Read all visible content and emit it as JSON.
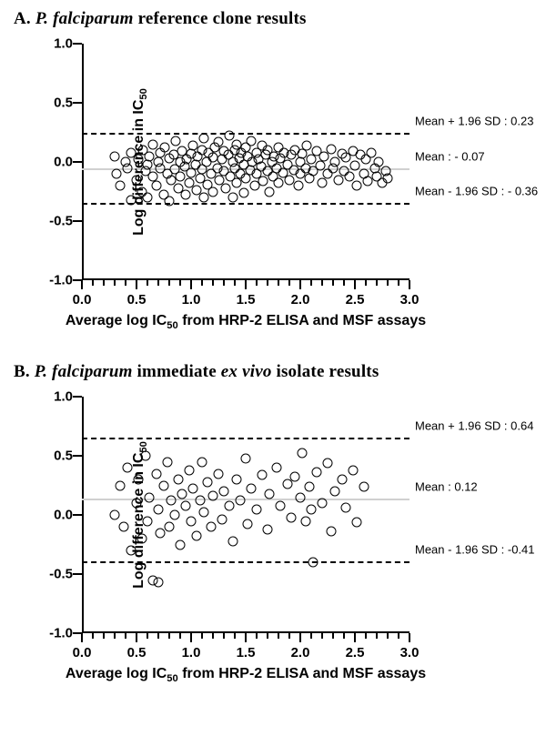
{
  "figure": {
    "panels": [
      {
        "id": "A",
        "title_prefix": "A. ",
        "title_italic": "P. falciparum",
        "title_suffix": " reference clone results",
        "xlabel_prefix": "Average log IC",
        "xlabel_sub": "50",
        "xlabel_suffix": " from HRP-2 ELISA and MSF assays",
        "ylabel_prefix": "Log difference in IC",
        "ylabel_sub": "50",
        "xlim": [
          0,
          3.0
        ],
        "ylim": [
          -1.0,
          1.0
        ],
        "xticks_major": [
          0.0,
          0.5,
          1.0,
          1.5,
          2.0,
          2.5,
          3.0
        ],
        "xticks_minor_step": 0.1,
        "yticks": [
          -1.0,
          -0.5,
          0.0,
          0.5,
          1.0
        ],
        "mean": -0.07,
        "upper": 0.23,
        "lower": -0.36,
        "annot_upper": "Mean + 1.96 SD : 0.23",
        "annot_mean": "Mean : - 0.07",
        "annot_lower": "Mean - 1.96 SD : - 0.36",
        "marker_color": "#000000",
        "background": "#ffffff",
        "points": [
          [
            0.3,
            0.05
          ],
          [
            0.32,
            -0.1
          ],
          [
            0.35,
            -0.2
          ],
          [
            0.4,
            0.0
          ],
          [
            0.42,
            -0.05
          ],
          [
            0.45,
            0.08
          ],
          [
            0.45,
            -0.32
          ],
          [
            0.5,
            -0.15
          ],
          [
            0.52,
            0.02
          ],
          [
            0.55,
            -0.25
          ],
          [
            0.56,
            0.1
          ],
          [
            0.58,
            -0.08
          ],
          [
            0.6,
            -0.02
          ],
          [
            0.6,
            -0.3
          ],
          [
            0.62,
            0.05
          ],
          [
            0.65,
            -0.12
          ],
          [
            0.65,
            0.15
          ],
          [
            0.68,
            -0.2
          ],
          [
            0.7,
            0.0
          ],
          [
            0.72,
            -0.05
          ],
          [
            0.72,
            0.08
          ],
          [
            0.75,
            -0.28
          ],
          [
            0.76,
            0.12
          ],
          [
            0.78,
            -0.1
          ],
          [
            0.8,
            0.03
          ],
          [
            0.8,
            -0.33
          ],
          [
            0.82,
            -0.15
          ],
          [
            0.84,
            0.06
          ],
          [
            0.85,
            -0.06
          ],
          [
            0.86,
            0.18
          ],
          [
            0.88,
            -0.22
          ],
          [
            0.9,
            0.0
          ],
          [
            0.9,
            -0.12
          ],
          [
            0.92,
            0.09
          ],
          [
            0.94,
            -0.04
          ],
          [
            0.95,
            -0.28
          ],
          [
            0.96,
            0.02
          ],
          [
            0.98,
            -0.18
          ],
          [
            1.0,
            0.07
          ],
          [
            1.0,
            -0.09
          ],
          [
            1.02,
            0.14
          ],
          [
            1.04,
            -0.02
          ],
          [
            1.05,
            -0.24
          ],
          [
            1.06,
            0.05
          ],
          [
            1.08,
            -0.14
          ],
          [
            1.1,
            0.1
          ],
          [
            1.1,
            -0.06
          ],
          [
            1.12,
            0.2
          ],
          [
            1.12,
            -0.3
          ],
          [
            1.14,
            0.0
          ],
          [
            1.15,
            -0.19
          ],
          [
            1.16,
            0.08
          ],
          [
            1.18,
            -0.1
          ],
          [
            1.2,
            0.04
          ],
          [
            1.2,
            -0.25
          ],
          [
            1.22,
            0.12
          ],
          [
            1.24,
            -0.05
          ],
          [
            1.25,
            0.17
          ],
          [
            1.26,
            -0.15
          ],
          [
            1.28,
            0.02
          ],
          [
            1.3,
            -0.08
          ],
          [
            1.3,
            0.09
          ],
          [
            1.32,
            -0.22
          ],
          [
            1.34,
            0.06
          ],
          [
            1.35,
            0.22
          ],
          [
            1.36,
            -0.12
          ],
          [
            1.38,
            0.0
          ],
          [
            1.38,
            -0.3
          ],
          [
            1.4,
            0.1
          ],
          [
            1.4,
            -0.05
          ],
          [
            1.42,
            0.15
          ],
          [
            1.42,
            -0.18
          ],
          [
            1.44,
            0.03
          ],
          [
            1.45,
            -0.1
          ],
          [
            1.46,
            0.08
          ],
          [
            1.48,
            -0.02
          ],
          [
            1.48,
            -0.26
          ],
          [
            1.5,
            0.12
          ],
          [
            1.5,
            -0.14
          ],
          [
            1.52,
            0.05
          ],
          [
            1.54,
            -0.07
          ],
          [
            1.55,
            0.18
          ],
          [
            1.56,
            0.0
          ],
          [
            1.58,
            -0.2
          ],
          [
            1.6,
            0.08
          ],
          [
            1.6,
            -0.1
          ],
          [
            1.62,
            0.02
          ],
          [
            1.64,
            -0.04
          ],
          [
            1.65,
            0.14
          ],
          [
            1.66,
            -0.16
          ],
          [
            1.68,
            0.06
          ],
          [
            1.7,
            -0.08
          ],
          [
            1.7,
            0.1
          ],
          [
            1.72,
            -0.25
          ],
          [
            1.74,
            0.0
          ],
          [
            1.75,
            -0.12
          ],
          [
            1.76,
            0.05
          ],
          [
            1.78,
            -0.05
          ],
          [
            1.8,
            0.12
          ],
          [
            1.8,
            -0.18
          ],
          [
            1.82,
            0.03
          ],
          [
            1.84,
            -0.09
          ],
          [
            1.85,
            0.08
          ],
          [
            1.88,
            -0.02
          ],
          [
            1.9,
            -0.15
          ],
          [
            1.92,
            0.06
          ],
          [
            1.94,
            -0.07
          ],
          [
            1.95,
            0.1
          ],
          [
            1.98,
            -0.2
          ],
          [
            2.0,
            0.0
          ],
          [
            2.0,
            -0.1
          ],
          [
            2.02,
            0.07
          ],
          [
            2.05,
            -0.05
          ],
          [
            2.06,
            0.14
          ],
          [
            2.08,
            -0.14
          ],
          [
            2.1,
            0.02
          ],
          [
            2.12,
            -0.08
          ],
          [
            2.15,
            0.09
          ],
          [
            2.18,
            -0.03
          ],
          [
            2.2,
            -0.18
          ],
          [
            2.22,
            0.05
          ],
          [
            2.25,
            -0.1
          ],
          [
            2.28,
            0.11
          ],
          [
            2.3,
            -0.05
          ],
          [
            2.32,
            0.0
          ],
          [
            2.35,
            -0.15
          ],
          [
            2.38,
            0.07
          ],
          [
            2.4,
            -0.08
          ],
          [
            2.42,
            0.04
          ],
          [
            2.45,
            -0.12
          ],
          [
            2.48,
            0.09
          ],
          [
            2.5,
            -0.03
          ],
          [
            2.52,
            -0.2
          ],
          [
            2.55,
            0.06
          ],
          [
            2.58,
            -0.1
          ],
          [
            2.6,
            0.02
          ],
          [
            2.62,
            -0.16
          ],
          [
            2.65,
            0.08
          ],
          [
            2.68,
            -0.05
          ],
          [
            2.7,
            -0.12
          ],
          [
            2.72,
            0.0
          ],
          [
            2.75,
            -0.18
          ],
          [
            2.78,
            -0.08
          ],
          [
            2.8,
            -0.14
          ]
        ]
      },
      {
        "id": "B",
        "title_prefix": "B. ",
        "title_italic": "P. falciparum",
        "title_mid": " immediate ",
        "title_italic2": "ex vivo",
        "title_suffix": " isolate results",
        "xlabel_prefix": "Average log IC",
        "xlabel_sub": "50",
        "xlabel_suffix": " from HRP-2 ELISA and MSF assays",
        "ylabel_prefix": "Log difference in IC",
        "ylabel_sub": "50",
        "xlim": [
          0,
          3.0
        ],
        "ylim": [
          -1.0,
          1.0
        ],
        "xticks_major": [
          0.0,
          0.5,
          1.0,
          1.5,
          2.0,
          2.5,
          3.0
        ],
        "xticks_minor_step": 0.1,
        "yticks": [
          -1.0,
          -0.5,
          0.0,
          0.5,
          1.0
        ],
        "mean": 0.12,
        "upper": 0.64,
        "lower": -0.41,
        "annot_upper": "Mean + 1.96 SD : 0.64",
        "annot_mean": "Mean  :  0.12",
        "annot_lower": "Mean - 1.96 SD : -0.41",
        "marker_color": "#000000",
        "background": "#ffffff",
        "points": [
          [
            0.3,
            0.0
          ],
          [
            0.35,
            0.25
          ],
          [
            0.38,
            -0.1
          ],
          [
            0.42,
            0.4
          ],
          [
            0.45,
            -0.3
          ],
          [
            0.5,
            0.1
          ],
          [
            0.52,
            0.3
          ],
          [
            0.55,
            -0.2
          ],
          [
            0.58,
            0.5
          ],
          [
            0.6,
            -0.05
          ],
          [
            0.62,
            0.15
          ],
          [
            0.65,
            -0.55
          ],
          [
            0.68,
            0.35
          ],
          [
            0.7,
            0.05
          ],
          [
            0.7,
            -0.57
          ],
          [
            0.72,
            -0.15
          ],
          [
            0.75,
            0.25
          ],
          [
            0.78,
            0.45
          ],
          [
            0.8,
            -0.1
          ],
          [
            0.82,
            0.12
          ],
          [
            0.85,
            0.0
          ],
          [
            0.88,
            0.3
          ],
          [
            0.9,
            -0.25
          ],
          [
            0.92,
            0.18
          ],
          [
            0.95,
            0.08
          ],
          [
            0.98,
            0.38
          ],
          [
            1.0,
            -0.05
          ],
          [
            1.02,
            0.22
          ],
          [
            1.05,
            -0.18
          ],
          [
            1.08,
            0.12
          ],
          [
            1.1,
            0.45
          ],
          [
            1.12,
            0.02
          ],
          [
            1.15,
            0.28
          ],
          [
            1.18,
            -0.1
          ],
          [
            1.2,
            0.16
          ],
          [
            1.25,
            0.35
          ],
          [
            1.28,
            -0.04
          ],
          [
            1.3,
            0.2
          ],
          [
            1.35,
            0.08
          ],
          [
            1.38,
            -0.22
          ],
          [
            1.42,
            0.3
          ],
          [
            1.45,
            0.12
          ],
          [
            1.5,
            0.48
          ],
          [
            1.52,
            -0.08
          ],
          [
            1.55,
            0.22
          ],
          [
            1.6,
            0.05
          ],
          [
            1.65,
            0.34
          ],
          [
            1.7,
            -0.12
          ],
          [
            1.72,
            0.18
          ],
          [
            1.78,
            0.4
          ],
          [
            1.82,
            0.08
          ],
          [
            1.88,
            0.26
          ],
          [
            1.92,
            -0.02
          ],
          [
            1.95,
            0.32
          ],
          [
            2.0,
            0.15
          ],
          [
            2.02,
            0.52
          ],
          [
            2.05,
            -0.05
          ],
          [
            2.08,
            0.24
          ],
          [
            2.1,
            0.05
          ],
          [
            2.12,
            -0.4
          ],
          [
            2.15,
            0.36
          ],
          [
            2.2,
            0.1
          ],
          [
            2.25,
            0.44
          ],
          [
            2.28,
            -0.14
          ],
          [
            2.32,
            0.2
          ],
          [
            2.38,
            0.3
          ],
          [
            2.42,
            0.06
          ],
          [
            2.48,
            0.38
          ],
          [
            2.52,
            -0.06
          ],
          [
            2.58,
            0.24
          ]
        ]
      }
    ]
  }
}
